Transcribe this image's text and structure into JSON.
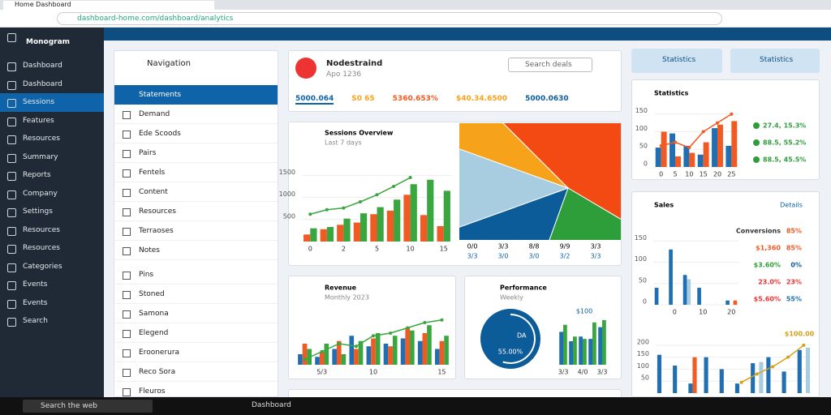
{
  "browser": {
    "tab": "Home Dashboard",
    "url": "dashboard-home.com/dashboard/analytics"
  },
  "sidebar": {
    "title": "Monogram",
    "items": [
      "Dashboard",
      "Dashboard",
      "Sessions",
      "Features",
      "Resources",
      "Summary",
      "Reports",
      "Company",
      "Settings",
      "Resources",
      "Resources",
      "Categories",
      "Events",
      "Events",
      "Search"
    ]
  },
  "panel": {
    "title": "Navigation",
    "active": "Statements",
    "items": [
      "Demand",
      "Ede Scoods",
      "Pairs",
      "Fentels",
      "Content",
      "Resources",
      "Terraoses",
      "Notes",
      "Pins",
      "Stoned",
      "Samona",
      "Elegend",
      "Eroonerura",
      "Reco Sora",
      "Fleuros"
    ]
  },
  "header_card": {
    "title": "Nodestraind",
    "subtitle": "Apo 1236",
    "search": "Search deals",
    "tabs": [
      "5000.064",
      "S0 65",
      "5360.653%",
      "$40.34.6500",
      "5000.0630"
    ]
  },
  "buttons": [
    "Statistics",
    "Statistics"
  ],
  "taskbar": {
    "search": "Search the web",
    "app": "Dashboard"
  },
  "chart_data": [
    {
      "type": "bar",
      "title": "Sessions Overview",
      "subtitle": "Last 7 days",
      "ylim": [
        0,
        1800
      ],
      "yticks": [
        500,
        1000,
        1500
      ],
      "categories": [
        "0",
        null,
        "2",
        null,
        "5",
        null,
        "10",
        null,
        "15"
      ],
      "series": [
        {
          "color": "#f15a22",
          "values": [
            160,
            280,
            380,
            430,
            620,
            700,
            1060,
            600,
            350
          ]
        },
        {
          "color": "#3aa63f",
          "values": [
            300,
            330,
            520,
            640,
            780,
            950,
            1300,
            1400,
            1150
          ]
        },
        {
          "mark": "line",
          "color": "#3aa63f",
          "values": [
            620,
            720,
            760,
            900,
            1060,
            1250,
            1450,
            null,
            null
          ]
        }
      ]
    },
    {
      "type": "pie",
      "values": [
        46,
        22,
        14,
        11,
        7
      ],
      "colors": [
        "#f24a12",
        "#2e9e3a",
        "#0d5c9a",
        "#a9cde0",
        "#f7a21b"
      ],
      "labels": [
        "0/0",
        "3/3",
        "8/8",
        "9/9",
        "3/3"
      ],
      "labels2": [
        "3/3",
        "3/0",
        "3/0",
        "3/2",
        "3/3"
      ]
    },
    {
      "type": "bar",
      "title": "Statistics",
      "ylim": [
        0,
        170
      ],
      "yticks": [
        0,
        50,
        100,
        150
      ],
      "categories": [
        "0",
        "5",
        "10",
        "15",
        "20",
        "25"
      ],
      "series": [
        {
          "color": "#1f6fb2",
          "values": [
            55,
            95,
            60,
            35,
            110,
            60
          ]
        },
        {
          "color": "#f15a22",
          "values": [
            100,
            30,
            40,
            70,
            120,
            130
          ]
        },
        {
          "mark": "line",
          "color": "#f15a22",
          "values": [
            60,
            70,
            55,
            100,
            125,
            150
          ]
        }
      ],
      "legend": [
        "27.4, 15.3%",
        "88.5, 55.2%",
        "88.5, 45.5%"
      ]
    },
    {
      "type": "bar",
      "title": "Revenue",
      "subtitle": "Monthly 2023",
      "ylim": [
        0,
        100
      ],
      "categories": [
        null,
        "5/3",
        null,
        null,
        "10",
        null,
        null,
        null,
        "15"
      ],
      "series": [
        {
          "color": "#1f6fb2",
          "values": [
            20,
            15,
            30,
            55,
            35,
            40,
            50,
            45,
            30
          ]
        },
        {
          "color": "#f15a22",
          "values": [
            40,
            25,
            45,
            30,
            50,
            35,
            70,
            60,
            45
          ]
        },
        {
          "color": "#3aa63f",
          "values": [
            30,
            40,
            20,
            45,
            60,
            55,
            65,
            75,
            55
          ]
        },
        {
          "mark": "line",
          "color": "#3aa63f",
          "values": [
            10,
            25,
            40,
            35,
            55,
            60,
            70,
            80,
            85
          ]
        }
      ]
    },
    {
      "type": "gauge",
      "title": "Performance",
      "subtitle": "Weekly",
      "label": "DA",
      "value": 55,
      "value_label": "55.00%",
      "color": "#0d5c9a"
    },
    {
      "type": "bar",
      "title": "$100",
      "ylim": [
        0,
        100
      ],
      "categories": [
        "3/3",
        null,
        "4/0",
        null,
        "3/3"
      ],
      "series": [
        {
          "color": "#1f6fb2",
          "values": [
            70,
            50,
            60,
            55,
            80
          ]
        },
        {
          "color": "#3aa63f",
          "values": [
            85,
            60,
            55,
            90,
            95
          ]
        }
      ]
    },
    {
      "type": "bar",
      "title": "Sales",
      "action": "Details",
      "ylim": [
        0,
        160
      ],
      "yticks": [
        0,
        50,
        100,
        150
      ],
      "categories": [
        null,
        "0",
        null,
        "10",
        null,
        "20"
      ],
      "series": [
        {
          "color": "#1f6fb2",
          "values": [
            40,
            130,
            70,
            40,
            0,
            10
          ]
        },
        {
          "color": "#a9cde0",
          "values": [
            0,
            0,
            60,
            0,
            0,
            0
          ]
        },
        {
          "color": "#f15a22",
          "values": [
            0,
            0,
            0,
            0,
            0,
            10
          ]
        }
      ],
      "side": [
        [
          "Conversions",
          "85%"
        ],
        [
          "$1,360",
          "85%"
        ],
        [
          "$3.60%",
          "0%"
        ],
        [
          "23.0%",
          "23%"
        ],
        [
          "$5.60%",
          "55%"
        ]
      ]
    },
    {
      "type": "bar",
      "title": "$100.00",
      "ylim": [
        0,
        220
      ],
      "yticks": [
        50,
        100,
        150,
        200
      ],
      "categories": [
        null,
        null,
        null,
        null,
        null,
        null,
        null,
        null,
        null,
        null
      ],
      "series": [
        {
          "color": "#1f6fb2",
          "values": [
            160,
            115,
            40,
            150,
            100,
            40,
            125,
            150,
            90,
            180
          ]
        },
        {
          "color": "#f15a22",
          "values": [
            0,
            0,
            150,
            0,
            0,
            0,
            0,
            0,
            0,
            0
          ]
        },
        {
          "color": "#a9cde0",
          "values": [
            0,
            0,
            0,
            0,
            0,
            0,
            130,
            0,
            0,
            190
          ]
        },
        {
          "mark": "line",
          "color": "#d4a017",
          "values": [
            null,
            null,
            null,
            null,
            null,
            45,
            80,
            110,
            150,
            200
          ]
        }
      ]
    }
  ]
}
